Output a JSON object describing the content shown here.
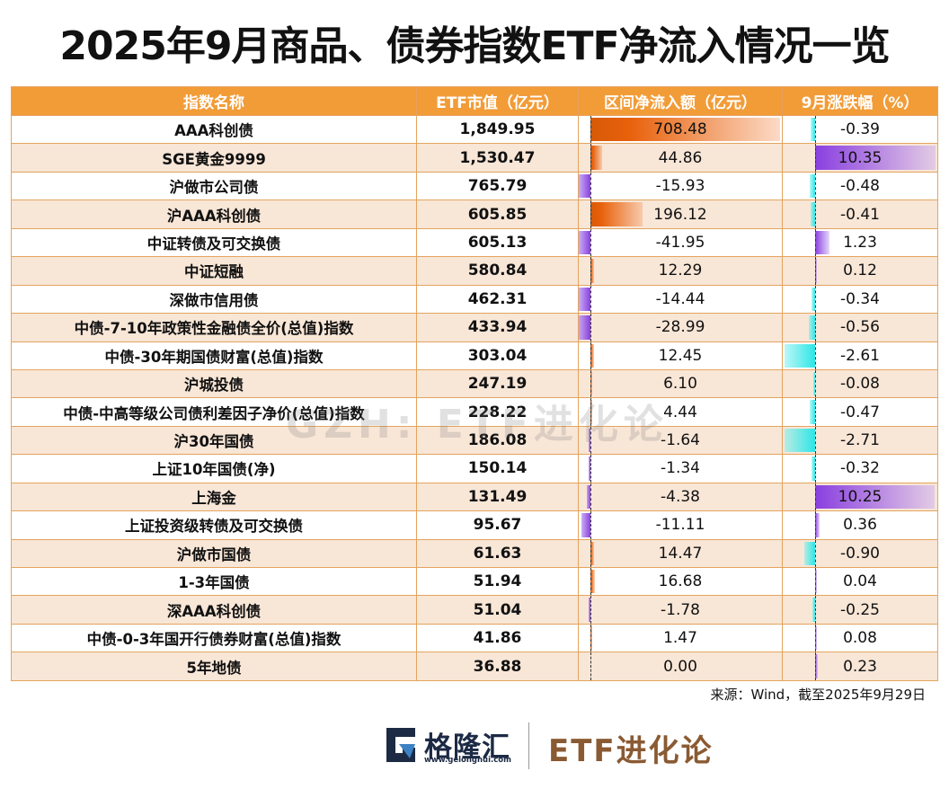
{
  "title": "2025年9月商品、债券指数ETF净流入情况一览",
  "table": {
    "headers": [
      "指数名称",
      "ETF市值（亿元）",
      "区间净流入额（亿元）",
      "9月涨跌幅（%）"
    ],
    "rows": [
      {
        "name": "AAA科创债",
        "mktcap": "1,849.95",
        "inflow": "708.48",
        "change": "-0.39"
      },
      {
        "name": "SGE黄金9999",
        "mktcap": "1,530.47",
        "inflow": "44.86",
        "change": "10.35"
      },
      {
        "name": "沪做市公司债",
        "mktcap": "765.79",
        "inflow": "-15.93",
        "change": "-0.48"
      },
      {
        "name": "沪AAA科创债",
        "mktcap": "605.85",
        "inflow": "196.12",
        "change": "-0.41"
      },
      {
        "name": "中证转债及可交换债",
        "mktcap": "605.13",
        "inflow": "-41.95",
        "change": "1.23"
      },
      {
        "name": "中证短融",
        "mktcap": "580.84",
        "inflow": "12.29",
        "change": "0.12"
      },
      {
        "name": "深做市信用债",
        "mktcap": "462.31",
        "inflow": "-14.44",
        "change": "-0.34"
      },
      {
        "name": "中债-7-10年政策性金融债全价(总值)指数",
        "mktcap": "433.94",
        "inflow": "-28.99",
        "change": "-0.56"
      },
      {
        "name": "中债-30年期国债财富(总值)指数",
        "mktcap": "303.04",
        "inflow": "12.45",
        "change": "-2.61"
      },
      {
        "name": "沪城投债",
        "mktcap": "247.19",
        "inflow": "6.10",
        "change": "-0.08"
      },
      {
        "name": "中债-中高等级公司债利差因子净价(总值)指数",
        "mktcap": "228.22",
        "inflow": "4.44",
        "change": "-0.47"
      },
      {
        "name": "沪30年国债",
        "mktcap": "186.08",
        "inflow": "-1.64",
        "change": "-2.71"
      },
      {
        "name": "上证10年国债(净)",
        "mktcap": "150.14",
        "inflow": "-1.34",
        "change": "-0.32"
      },
      {
        "name": "上海金",
        "mktcap": "131.49",
        "inflow": "-4.38",
        "change": "10.25"
      },
      {
        "name": "上证投资级转债及可交换债",
        "mktcap": "95.67",
        "inflow": "-11.11",
        "change": "0.36"
      },
      {
        "name": "沪做市国债",
        "mktcap": "61.63",
        "inflow": "14.47",
        "change": "-0.90"
      },
      {
        "name": "1-3年国债",
        "mktcap": "51.94",
        "inflow": "16.68",
        "change": "0.04"
      },
      {
        "name": "深AAA科创债",
        "mktcap": "51.04",
        "inflow": "-1.78",
        "change": "-0.25"
      },
      {
        "name": "中债-0-3年国开行债券财富(总值)指数",
        "mktcap": "41.86",
        "inflow": "1.47",
        "change": "0.08"
      },
      {
        "name": "5年地债",
        "mktcap": "36.88",
        "inflow": "0.00",
        "change": "0.23"
      }
    ]
  },
  "colors": {
    "header_bg": "#F29C38",
    "row_alt_bg": "#F8E6D7",
    "inflow_positive": "#E8600A",
    "inflow_negative": "#8A3FE0",
    "change_positive": "#8A3FE0",
    "change_negative": "#2EE6E6",
    "brand": "#8A5A33"
  },
  "source": "来源：Wind，截至2025年9月29日",
  "watermark": "GZH: ETF进化论",
  "footer": {
    "logo_name": "格隆汇",
    "logo_url": "www.gelonghui.com",
    "brand": "ETF进化论"
  },
  "chart_data": {
    "type": "table",
    "title": "2025年9月商品、债券指数ETF净流入情况一览",
    "columns": [
      "指数名称",
      "ETF市值（亿元）",
      "区间净流入额（亿元）",
      "9月涨跌幅（%）"
    ],
    "categories": [
      "AAA科创债",
      "SGE黄金9999",
      "沪做市公司债",
      "沪AAA科创债",
      "中证转债及可交换债",
      "中证短融",
      "深做市信用债",
      "中债-7-10年政策性金融债全价(总值)指数",
      "中债-30年期国债财富(总值)指数",
      "沪城投债",
      "中债-中高等级公司债利差因子净价(总值)指数",
      "沪30年国债",
      "上证10年国债(净)",
      "上海金",
      "上证投资级转债及可交换债",
      "沪做市国债",
      "1-3年国债",
      "深AAA科创债",
      "中债-0-3年国开行债券财富(总值)指数",
      "5年地债"
    ],
    "series": [
      {
        "name": "ETF市值（亿元）",
        "values": [
          1849.95,
          1530.47,
          765.79,
          605.85,
          605.13,
          580.84,
          462.31,
          433.94,
          303.04,
          247.19,
          228.22,
          186.08,
          150.14,
          131.49,
          95.67,
          61.63,
          51.94,
          51.04,
          41.86,
          36.88
        ]
      },
      {
        "name": "区间净流入额（亿元）",
        "values": [
          708.48,
          44.86,
          -15.93,
          196.12,
          -41.95,
          12.29,
          -14.44,
          -28.99,
          12.45,
          6.1,
          4.44,
          -1.64,
          -1.34,
          -4.38,
          -11.11,
          14.47,
          16.68,
          -1.78,
          1.47,
          0.0
        ]
      },
      {
        "name": "9月涨跌幅（%）",
        "values": [
          -0.39,
          10.35,
          -0.48,
          -0.41,
          1.23,
          0.12,
          -0.34,
          -0.56,
          -2.61,
          -0.08,
          -0.47,
          -2.71,
          -0.32,
          10.25,
          0.36,
          -0.9,
          0.04,
          -0.25,
          0.08,
          0.23
        ]
      }
    ],
    "source": "来源：Wind，截至2025年9月29日"
  }
}
